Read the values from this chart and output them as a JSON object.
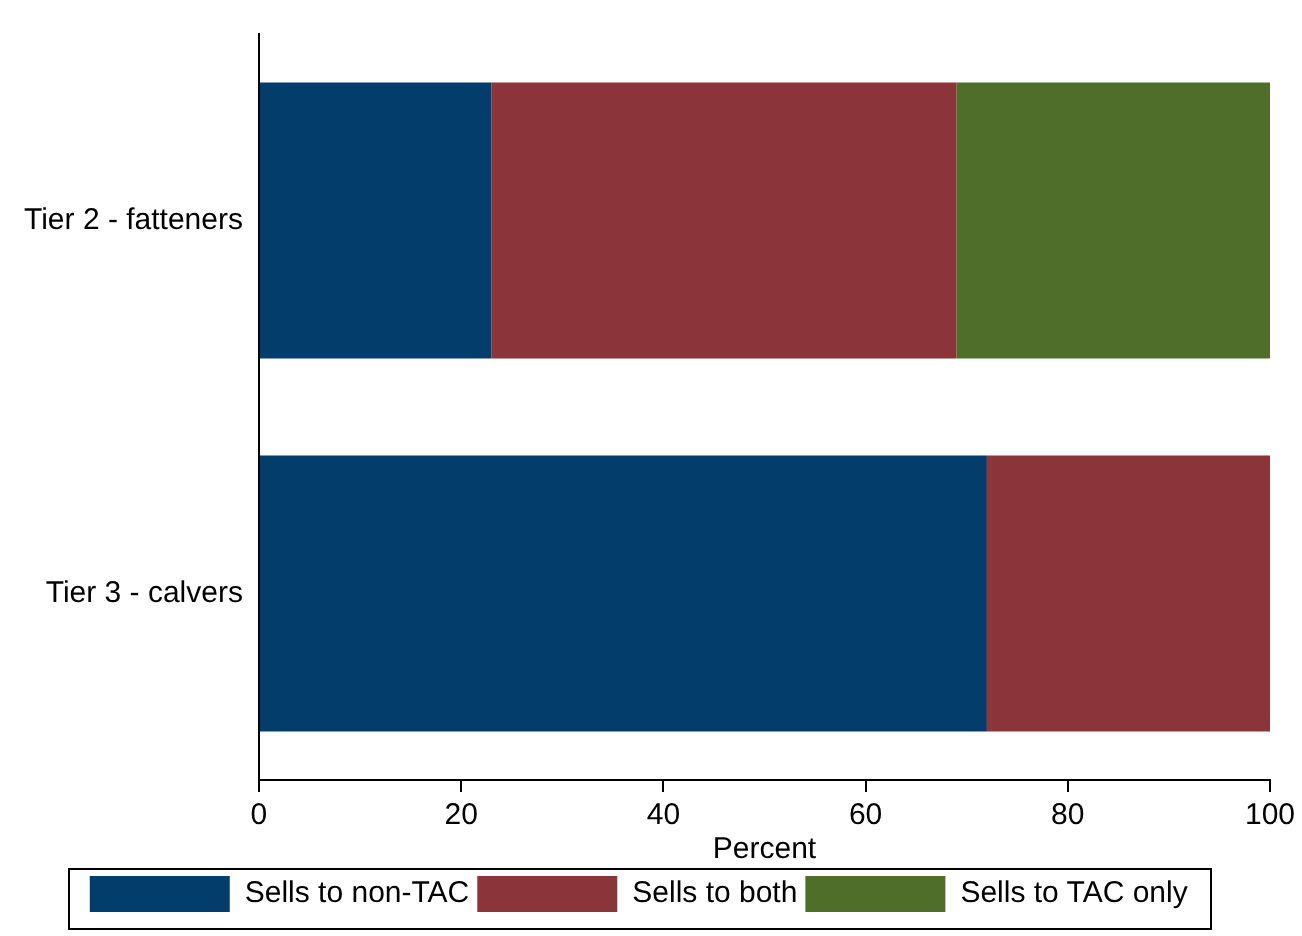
{
  "chart_data": {
    "type": "bar",
    "orientation": "horizontal",
    "stacked": true,
    "xlabel": "Percent",
    "categories": [
      "Tier 2 - fatteners",
      "Tier 3 - calvers"
    ],
    "series": [
      {
        "name": "Sells to non-TAC",
        "color": "#023d6b",
        "values": [
          23,
          72
        ]
      },
      {
        "name": "Sells to both",
        "color": "#8b343a",
        "values": [
          46,
          28
        ]
      },
      {
        "name": "Sells to TAC only",
        "color": "#4e6e2a",
        "values": [
          31,
          0
        ]
      }
    ],
    "xlim": [
      0,
      100
    ],
    "xticks": [
      0,
      20,
      40,
      60,
      80,
      100
    ],
    "grid": false,
    "legend": "bottom"
  }
}
